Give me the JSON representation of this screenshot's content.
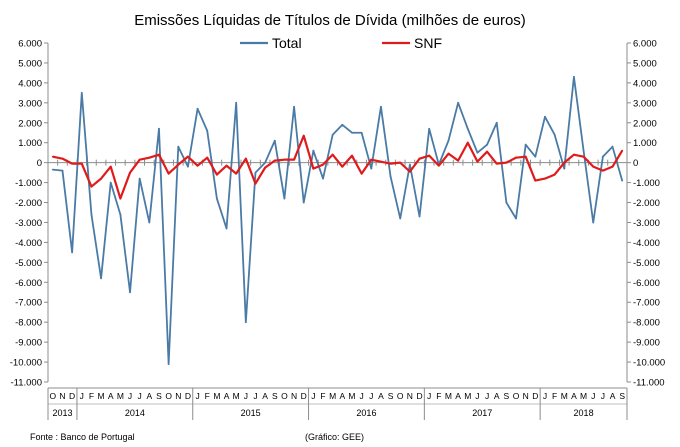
{
  "chart_data": {
    "type": "line",
    "title": "Emissões Líquidas de Títulos de Dívida (milhões de euros)",
    "xlabel": "",
    "ylabel": "",
    "ylim": [
      -11000,
      6000
    ],
    "y_ticks": [
      "6.000",
      "5.000",
      "4.000",
      "3.000",
      "2.000",
      "1.000",
      "0",
      "-1.000",
      "-2.000",
      "-3.000",
      "-4.000",
      "-5.000",
      "-6.000",
      "-7.000",
      "-8.000",
      "-9.000",
      "-10.000",
      "-11.000"
    ],
    "y_tick_values": [
      6000,
      5000,
      4000,
      3000,
      2000,
      1000,
      0,
      -1000,
      -2000,
      -3000,
      -4000,
      -5000,
      -6000,
      -7000,
      -8000,
      -9000,
      -10000,
      -11000
    ],
    "month_labels": [
      "O",
      "N",
      "D",
      "J",
      "F",
      "M",
      "A",
      "M",
      "J",
      "J",
      "A",
      "S",
      "O",
      "N",
      "D",
      "J",
      "F",
      "M",
      "A",
      "M",
      "J",
      "J",
      "A",
      "S",
      "O",
      "N",
      "D",
      "J",
      "F",
      "M",
      "A",
      "M",
      "J",
      "J",
      "A",
      "S",
      "O",
      "N",
      "D",
      "J",
      "F",
      "M",
      "A",
      "M",
      "J",
      "J",
      "A",
      "S",
      "O",
      "N",
      "D",
      "J",
      "F",
      "M",
      "A",
      "M",
      "J",
      "J",
      "A",
      "S"
    ],
    "year_groups": [
      {
        "label": "2013",
        "start": 0,
        "count": 3
      },
      {
        "label": "2014",
        "start": 3,
        "count": 12
      },
      {
        "label": "2015",
        "start": 15,
        "count": 12
      },
      {
        "label": "2016",
        "start": 27,
        "count": 12
      },
      {
        "label": "2017",
        "start": 39,
        "count": 12
      },
      {
        "label": "2018",
        "start": 51,
        "count": 9
      }
    ],
    "series": [
      {
        "name": "Total",
        "color": "#4a7ba6",
        "values": [
          -350,
          -400,
          -4500,
          3500,
          -2600,
          -5800,
          -1000,
          -2600,
          -6500,
          -800,
          -3000,
          1700,
          -10100,
          800,
          -200,
          2700,
          1600,
          -1800,
          -3300,
          3000,
          -8000,
          -500,
          0,
          1100,
          -1800,
          2800,
          -2000,
          600,
          -800,
          1400,
          1900,
          1500,
          1500,
          -300,
          2800,
          -700,
          -2800,
          -100,
          -2700,
          1700,
          -100,
          1100,
          3000,
          1700,
          500,
          900,
          2000,
          -2000,
          -2800,
          900,
          300,
          2300,
          1400,
          -300,
          4300,
          600,
          -3000,
          300,
          800,
          -900
        ]
      },
      {
        "name": "SNF",
        "color": "#e01b1b",
        "values": [
          300,
          200,
          -50,
          -50,
          -1200,
          -800,
          -200,
          -1800,
          -500,
          150,
          250,
          400,
          -550,
          -100,
          300,
          -150,
          250,
          -600,
          -150,
          -550,
          200,
          -1050,
          -250,
          100,
          150,
          150,
          1350,
          -300,
          -100,
          400,
          -200,
          350,
          -550,
          150,
          50,
          -50,
          0,
          -450,
          200,
          350,
          -150,
          450,
          100,
          1000,
          50,
          550,
          -50,
          0,
          250,
          300,
          -900,
          -800,
          -600,
          0,
          400,
          300,
          -200,
          -400,
          -200,
          600
        ]
      }
    ]
  },
  "footer": {
    "source": "Fonte : Banco de Portugal",
    "credit": "(Gráfico: GEE)"
  }
}
